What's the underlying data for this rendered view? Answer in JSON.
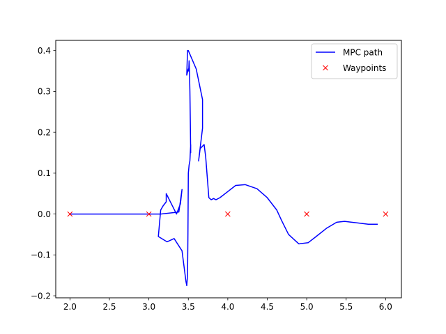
{
  "chart_data": {
    "type": "line",
    "title": "",
    "xlabel": "",
    "ylabel": "",
    "xlim": [
      1.82,
      6.2
    ],
    "ylim": [
      -0.205,
      0.425
    ],
    "xticks": [
      2.0,
      2.5,
      3.0,
      3.5,
      4.0,
      4.5,
      5.0,
      5.5,
      6.0
    ],
    "xtick_labels": [
      "2.0",
      "2.5",
      "3.0",
      "3.5",
      "4.0",
      "4.5",
      "5.0",
      "5.5",
      "6.0"
    ],
    "yticks": [
      -0.2,
      -0.1,
      0.0,
      0.1,
      0.2,
      0.3,
      0.4
    ],
    "ytick_labels": [
      "−0.2",
      "−0.1",
      "0.0",
      "0.1",
      "0.2",
      "0.3",
      "0.4"
    ],
    "grid": false,
    "legend_position": "top-right",
    "series": [
      {
        "name": "MPC path",
        "kind": "line",
        "color": "#0000ff",
        "x": [
          2.0,
          3.0,
          3.15,
          3.38,
          3.42,
          3.4,
          3.35,
          3.22,
          3.22,
          3.18,
          3.15,
          3.12,
          3.23,
          3.32,
          3.42,
          3.47,
          3.48,
          3.49,
          3.495,
          3.5,
          3.51,
          3.52,
          3.53,
          3.53,
          3.525,
          3.52,
          3.515,
          3.51,
          3.505,
          3.5,
          3.48,
          3.49,
          3.5,
          3.6,
          3.68,
          3.68,
          3.63,
          3.65,
          3.7,
          3.72,
          3.76,
          3.79,
          3.82,
          3.85,
          3.9,
          4.0,
          4.1,
          4.22,
          4.37,
          4.5,
          4.62,
          4.68,
          4.77,
          4.9,
          5.02,
          5.12,
          5.25,
          5.38,
          5.48,
          5.57,
          5.7,
          5.78,
          5.9
        ],
        "y": [
          0.0,
          0.0,
          0.0,
          0.005,
          0.06,
          0.025,
          0.0,
          0.05,
          0.03,
          0.02,
          0.01,
          -0.055,
          -0.068,
          -0.06,
          -0.09,
          -0.165,
          -0.175,
          -0.15,
          -0.05,
          0.1,
          0.12,
          0.13,
          0.17,
          0.15,
          0.23,
          0.3,
          0.345,
          0.375,
          0.35,
          0.355,
          0.34,
          0.4,
          0.4,
          0.355,
          0.28,
          0.21,
          0.13,
          0.16,
          0.17,
          0.14,
          0.04,
          0.035,
          0.038,
          0.035,
          0.04,
          0.055,
          0.07,
          0.072,
          0.062,
          0.04,
          0.01,
          -0.015,
          -0.05,
          -0.073,
          -0.07,
          -0.055,
          -0.035,
          -0.02,
          -0.018,
          -0.02,
          -0.023,
          -0.025,
          -0.025
        ]
      },
      {
        "name": "Waypoints",
        "kind": "marker",
        "marker": "x",
        "color": "#ff0000",
        "x": [
          2.0,
          3.0,
          4.0,
          5.0,
          6.0
        ],
        "y": [
          0.0,
          0.0,
          0.0,
          0.0,
          0.0
        ]
      }
    ]
  }
}
